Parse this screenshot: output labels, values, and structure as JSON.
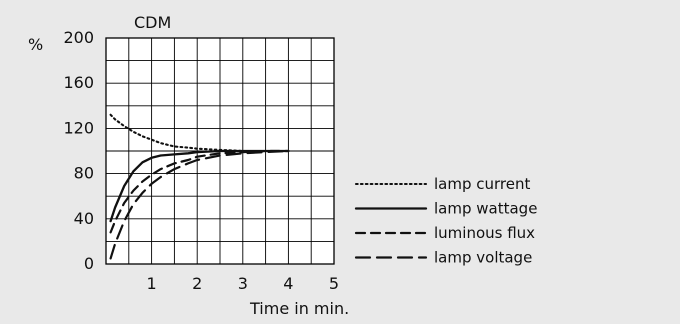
{
  "chart_data": {
    "type": "line",
    "title": "CDM",
    "xlabel": "Time in min.",
    "ylabel": "%",
    "xlim": [
      0,
      5
    ],
    "ylim": [
      0,
      200
    ],
    "x_ticks": [
      "1",
      "2",
      "3",
      "4",
      "5"
    ],
    "y_ticks": [
      "0",
      "40",
      "80",
      "120",
      "160",
      "200"
    ],
    "grid": true,
    "legend_position": "right",
    "series": [
      {
        "name": "lamp current",
        "style": "dotted",
        "x": [
          0.1,
          0.2,
          0.4,
          0.6,
          0.8,
          1.0,
          1.2,
          1.5,
          1.8,
          2.0,
          2.5,
          3.0,
          3.5,
          4.0
        ],
        "y": [
          132,
          128,
          122,
          117,
          113,
          110,
          107,
          104,
          103,
          102,
          101,
          100,
          100,
          100
        ]
      },
      {
        "name": "lamp wattage",
        "style": "solid",
        "x": [
          0.1,
          0.2,
          0.4,
          0.6,
          0.8,
          1.0,
          1.2,
          1.5,
          1.8,
          2.0,
          2.5,
          3.0,
          3.5,
          4.0
        ],
        "y": [
          38,
          50,
          69,
          82,
          90,
          94,
          96,
          97,
          98,
          99,
          100,
          100,
          100,
          100
        ]
      },
      {
        "name": "luminous flux",
        "style": "dashed",
        "x": [
          0.1,
          0.2,
          0.4,
          0.6,
          0.8,
          1.0,
          1.2,
          1.5,
          1.8,
          2.0,
          2.5,
          3.0,
          3.5,
          4.0
        ],
        "y": [
          28,
          38,
          54,
          65,
          73,
          79,
          84,
          89,
          92,
          95,
          98,
          99,
          100,
          100
        ]
      },
      {
        "name": "lamp voltage",
        "style": "long-dashed",
        "x": [
          0.1,
          0.2,
          0.4,
          0.6,
          0.8,
          1.0,
          1.2,
          1.5,
          1.8,
          2.0,
          2.5,
          3.0,
          3.5,
          4.0
        ],
        "y": [
          5,
          18,
          38,
          53,
          63,
          71,
          77,
          84,
          89,
          92,
          96,
          98,
          99,
          100
        ]
      }
    ]
  }
}
